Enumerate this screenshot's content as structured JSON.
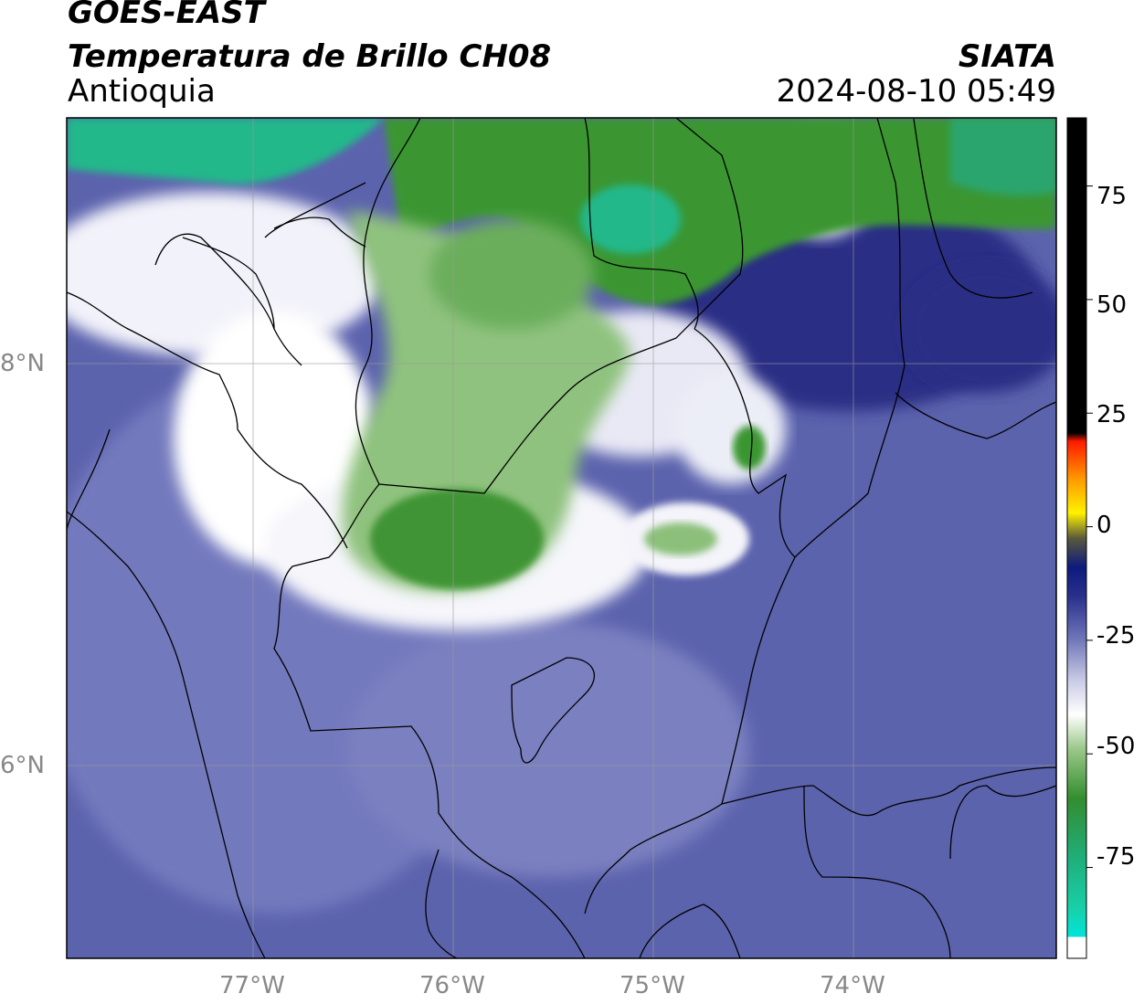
{
  "header": {
    "satellite": "GOES-EAST",
    "product": "Temperatura de Brillo CH08",
    "region": "Antioquia",
    "organization": "SIATA",
    "datetime": "2024-08-10 05:49"
  },
  "map": {
    "lon_ticks": [
      "77°W",
      "76°W",
      "75°W",
      "74°W"
    ],
    "lat_ticks": [
      "8°N",
      "6°N"
    ],
    "gridlines": true
  },
  "colorbar": {
    "ticks": [
      "75",
      "50",
      "25",
      "0",
      "-25",
      "-50",
      "-75"
    ],
    "range": [
      -95,
      90
    ],
    "colors": {
      "black": "#000000",
      "red": "#ff1a00",
      "orange": "#ff9a00",
      "yellow": "#fff200",
      "navy": "#0d1a7e",
      "blue": "#4d55a6",
      "lavender": "#b3b8dc",
      "white": "#ffffff",
      "green": "#338d2f",
      "teal": "#1fbf8f",
      "cyan": "#00e5d8"
    }
  },
  "colors": {
    "cold_cloud_green": "#3b9632",
    "teal_cloud": "#22b88a",
    "clear_blue": "#5c63ad",
    "deep_blue": "#2a2f85",
    "white_edge": "#f6f6fb",
    "border_line": "#000000"
  }
}
